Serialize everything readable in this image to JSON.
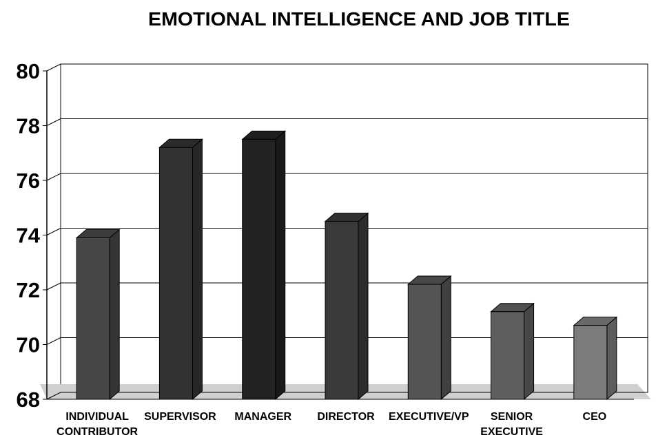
{
  "chart_data": {
    "type": "bar3d",
    "title": "EMOTIONAL INTELLIGENCE AND JOB TITLE",
    "categories": [
      "INDIVIDUAL CONTRIBUTOR",
      "SUPERVISOR",
      "MANAGER",
      "DIRECTOR",
      "EXECUTIVE/VP",
      "SENIOR EXECUTIVE",
      "CEO"
    ],
    "values": [
      73.9,
      77.2,
      77.5,
      74.5,
      72.2,
      71.2,
      70.7
    ],
    "colors": [
      "#474747",
      "#333333",
      "#232323",
      "#3a3a3a",
      "#555555",
      "#5f5f5f",
      "#7c7c7c"
    ],
    "ylim": [
      68,
      80
    ],
    "yticks": [
      68,
      70,
      72,
      74,
      76,
      78,
      80
    ],
    "grid": true
  }
}
